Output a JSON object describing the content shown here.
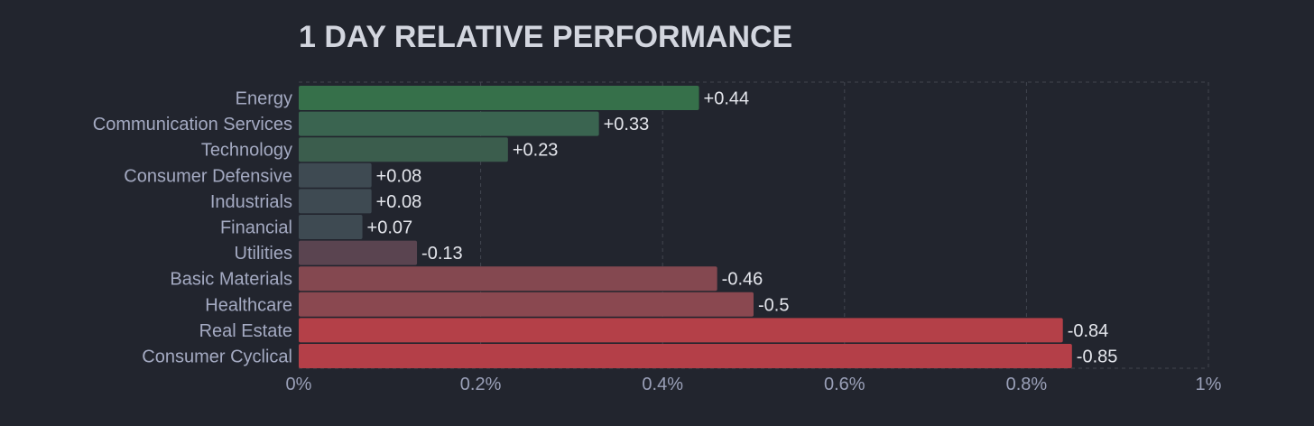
{
  "chart_data": {
    "type": "bar",
    "orientation": "horizontal",
    "title": "1 DAY RELATIVE PERFORMANCE",
    "xlabel": "",
    "ylabel": "",
    "xlim": [
      0,
      1
    ],
    "grid": true,
    "categories": [
      "Energy",
      "Communication Services",
      "Technology",
      "Consumer Defensive",
      "Industrials",
      "Financial",
      "Utilities",
      "Basic Materials",
      "Healthcare",
      "Real Estate",
      "Consumer Cyclical"
    ],
    "values": [
      0.44,
      0.33,
      0.23,
      0.08,
      0.08,
      0.07,
      -0.13,
      -0.46,
      -0.5,
      -0.84,
      -0.85
    ],
    "value_labels": [
      "+0.44",
      "+0.33",
      "+0.23",
      "+0.08",
      "+0.08",
      "+0.07",
      "-0.13",
      "-0.46",
      "-0.5",
      "-0.84",
      "-0.85"
    ],
    "bar_colors": [
      "#36704a",
      "#3a6450",
      "#3b5d4d",
      "#3e4a52",
      "#3e4a52",
      "#3e4a52",
      "#5a4450",
      "#844850",
      "#8a4850",
      "#b44048",
      "#b43f48"
    ],
    "x_ticks": [
      0,
      0.2,
      0.4,
      0.6,
      0.8,
      1
    ],
    "x_tick_labels": [
      "0%",
      "0.2%",
      "0.4%",
      "0.6%",
      "0.8%",
      "1%"
    ]
  },
  "colors": {
    "background": "#22252e",
    "grid": "#41454f"
  }
}
